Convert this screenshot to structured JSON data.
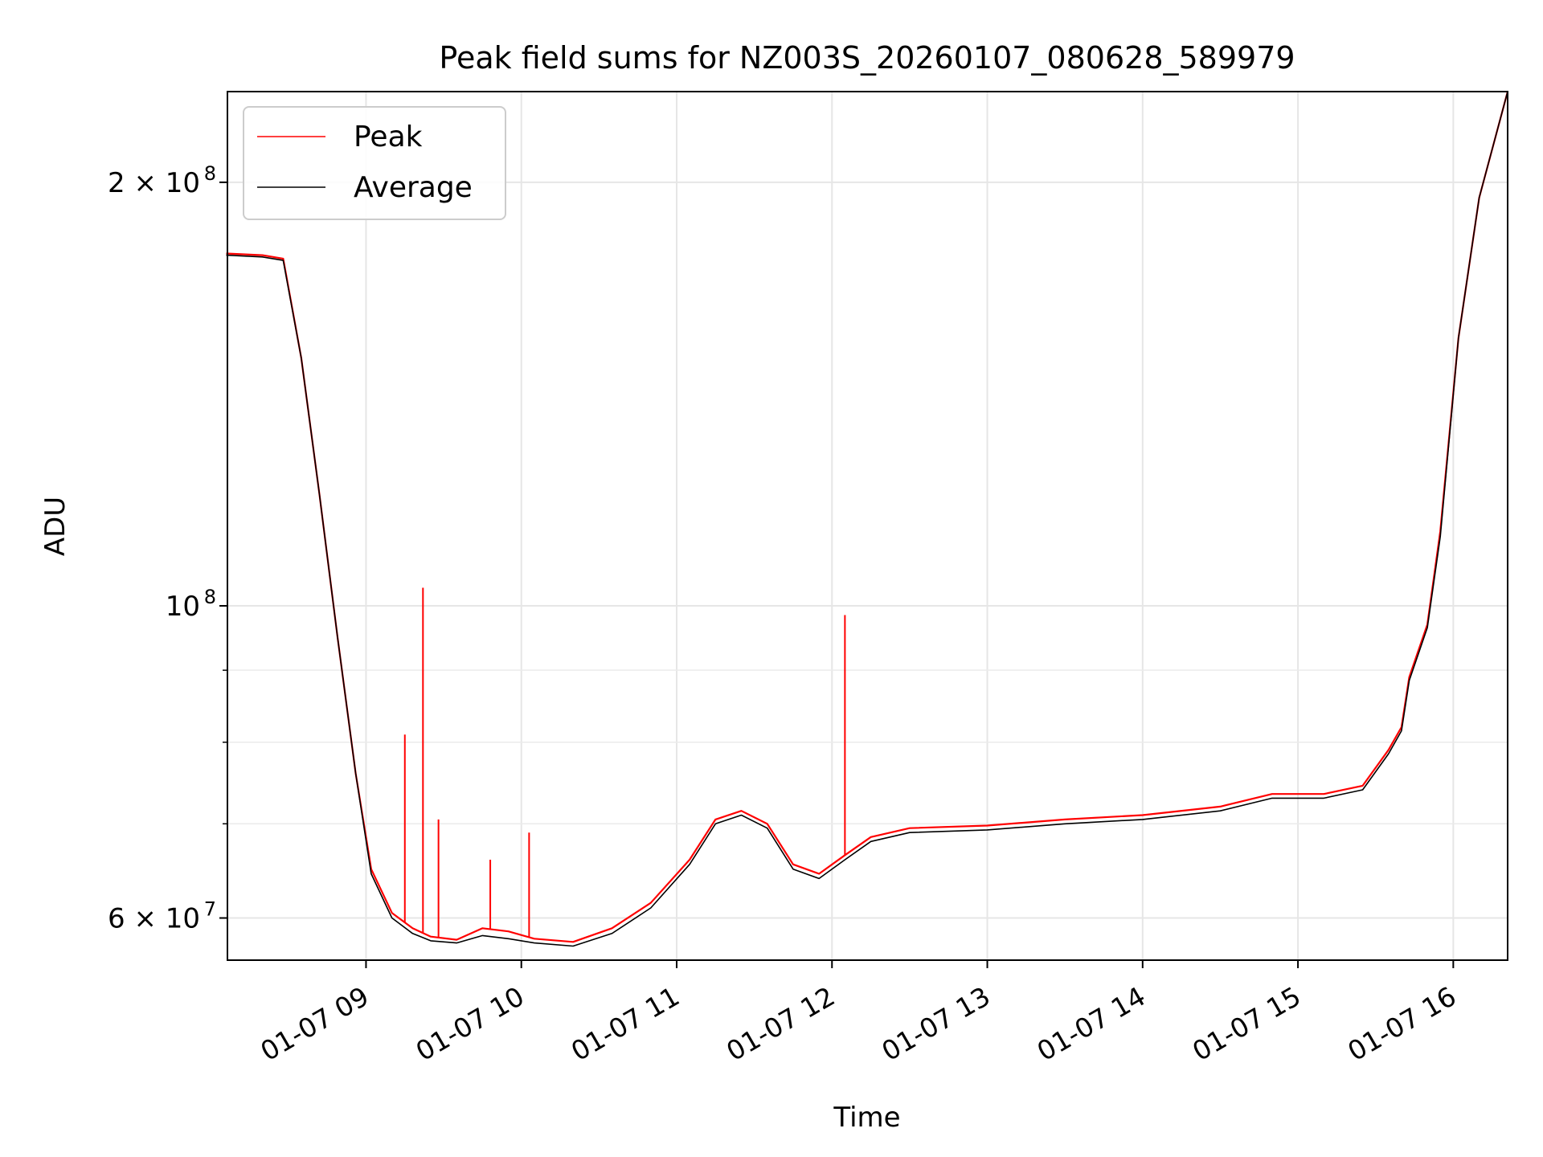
{
  "chart_data": {
    "type": "line",
    "title": "Peak field sums for NZ003S_20260107_080628_589979",
    "xlabel": "Time",
    "ylabel": "ADU",
    "y_scale": "log",
    "x_type": "datetime",
    "xlim": [
      "2026-01-07 08:06:28",
      "2026-01-07 16:21:00"
    ],
    "ylim": [
      56000000,
      232000000
    ],
    "grid": true,
    "legend": "upper-left",
    "x_ticks": [
      {
        "value": "2026-01-07 09:00",
        "label": "01-07 09"
      },
      {
        "value": "2026-01-07 10:00",
        "label": "01-07 10"
      },
      {
        "value": "2026-01-07 11:00",
        "label": "01-07 11"
      },
      {
        "value": "2026-01-07 12:00",
        "label": "01-07 12"
      },
      {
        "value": "2026-01-07 13:00",
        "label": "01-07 13"
      },
      {
        "value": "2026-01-07 14:00",
        "label": "01-07 14"
      },
      {
        "value": "2026-01-07 15:00",
        "label": "01-07 15"
      },
      {
        "value": "2026-01-07 16:00",
        "label": "01-07 16"
      }
    ],
    "y_major_ticks": [
      {
        "value": 60000000,
        "base": "6 × 10",
        "exp": "7"
      },
      {
        "value": 100000000,
        "base": "10",
        "exp": "8"
      },
      {
        "value": 200000000,
        "base": "2 × 10",
        "exp": "8"
      }
    ],
    "y_minor_ticks": [
      70000000,
      80000000,
      90000000
    ],
    "series": [
      {
        "name": "Peak",
        "color": "#ff0000",
        "x": [
          "2026-01-07 08:06",
          "2026-01-07 08:20",
          "2026-01-07 08:28",
          "2026-01-07 08:35",
          "2026-01-07 08:42",
          "2026-01-07 08:49",
          "2026-01-07 08:56",
          "2026-01-07 09:02",
          "2026-01-07 09:10",
          "2026-01-07 09:18",
          "2026-01-07 09:25",
          "2026-01-07 09:35",
          "2026-01-07 09:45",
          "2026-01-07 09:55",
          "2026-01-07 10:05",
          "2026-01-07 10:20",
          "2026-01-07 10:35",
          "2026-01-07 10:50",
          "2026-01-07 11:05",
          "2026-01-07 11:15",
          "2026-01-07 11:25",
          "2026-01-07 11:35",
          "2026-01-07 11:45",
          "2026-01-07 11:55",
          "2026-01-07 12:05",
          "2026-01-07 12:15",
          "2026-01-07 12:30",
          "2026-01-07 13:00",
          "2026-01-07 13:30",
          "2026-01-07 14:00",
          "2026-01-07 14:30",
          "2026-01-07 14:50",
          "2026-01-07 15:10",
          "2026-01-07 15:25",
          "2026-01-07 15:35",
          "2026-01-07 15:40",
          "2026-01-07 15:43",
          "2026-01-07 15:50",
          "2026-01-07 15:55",
          "2026-01-07 16:02",
          "2026-01-07 16:10",
          "2026-01-07 16:21"
        ],
        "y": [
          178000000,
          177500000,
          176500000,
          150000000,
          120000000,
          95000000,
          76000000,
          65000000,
          60500000,
          59000000,
          58200000,
          57900000,
          59000000,
          58700000,
          58000000,
          57700000,
          59000000,
          61500000,
          66000000,
          70500000,
          71500000,
          70000000,
          65500000,
          64500000,
          66500000,
          68500000,
          69500000,
          69800000,
          70500000,
          71000000,
          72000000,
          73500000,
          73500000,
          74500000,
          79000000,
          82000000,
          89000000,
          97000000,
          113000000,
          155000000,
          195000000,
          232000000
        ]
      },
      {
        "name": "Average",
        "color": "#000000",
        "x": [
          "2026-01-07 08:06",
          "2026-01-07 08:20",
          "2026-01-07 08:28",
          "2026-01-07 08:35",
          "2026-01-07 08:42",
          "2026-01-07 08:49",
          "2026-01-07 08:56",
          "2026-01-07 09:02",
          "2026-01-07 09:10",
          "2026-01-07 09:18",
          "2026-01-07 09:25",
          "2026-01-07 09:35",
          "2026-01-07 09:45",
          "2026-01-07 09:55",
          "2026-01-07 10:05",
          "2026-01-07 10:20",
          "2026-01-07 10:35",
          "2026-01-07 10:50",
          "2026-01-07 11:05",
          "2026-01-07 11:15",
          "2026-01-07 11:25",
          "2026-01-07 11:35",
          "2026-01-07 11:45",
          "2026-01-07 11:55",
          "2026-01-07 12:05",
          "2026-01-07 12:15",
          "2026-01-07 12:30",
          "2026-01-07 13:00",
          "2026-01-07 13:30",
          "2026-01-07 14:00",
          "2026-01-07 14:30",
          "2026-01-07 14:50",
          "2026-01-07 15:10",
          "2026-01-07 15:25",
          "2026-01-07 15:35",
          "2026-01-07 15:40",
          "2026-01-07 15:43",
          "2026-01-07 15:50",
          "2026-01-07 15:55",
          "2026-01-07 16:02",
          "2026-01-07 16:10",
          "2026-01-07 16:21"
        ],
        "y": [
          177500000,
          177000000,
          176000000,
          150000000,
          120000000,
          95000000,
          76000000,
          64500000,
          60000000,
          58500000,
          57800000,
          57600000,
          58300000,
          58000000,
          57600000,
          57300000,
          58500000,
          61000000,
          65500000,
          70000000,
          71000000,
          69500000,
          65000000,
          64000000,
          66000000,
          68000000,
          69000000,
          69300000,
          70000000,
          70500000,
          71500000,
          73000000,
          73000000,
          74000000,
          78500000,
          81500000,
          88500000,
          96500000,
          112000000,
          155000000,
          195000000,
          232000000
        ]
      }
    ],
    "spikes": [
      {
        "x": "2026-01-07 09:15",
        "y": 81000000
      },
      {
        "x": "2026-01-07 09:22",
        "y": 103000000
      },
      {
        "x": "2026-01-07 09:28",
        "y": 70500000
      },
      {
        "x": "2026-01-07 09:48",
        "y": 66000000
      },
      {
        "x": "2026-01-07 10:03",
        "y": 69000000
      },
      {
        "x": "2026-01-07 12:05",
        "y": 98500000
      }
    ]
  }
}
